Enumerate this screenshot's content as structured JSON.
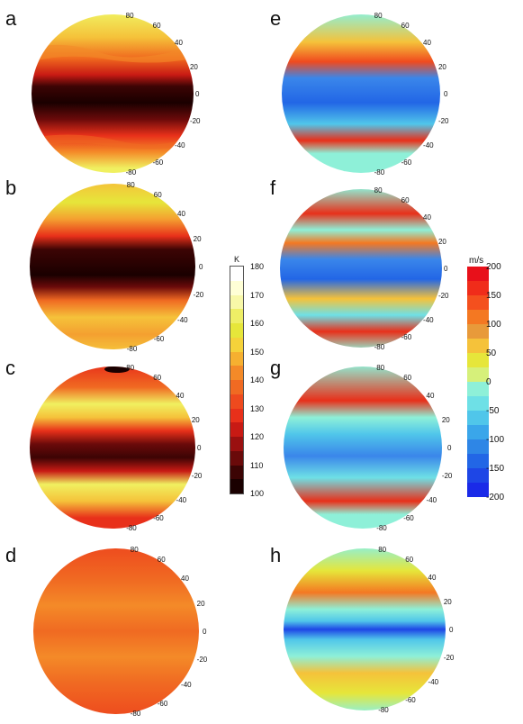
{
  "panels": [
    {
      "letter": "a",
      "lat_labels": [
        "80",
        "60",
        "40",
        "20",
        "0",
        "-20",
        "-40",
        "-60",
        "-80"
      ]
    },
    {
      "letter": "b",
      "lat_labels": [
        "80",
        "60",
        "40",
        "20",
        "0",
        "-20",
        "-40",
        "-60",
        "-80"
      ]
    },
    {
      "letter": "c",
      "lat_labels": [
        "80",
        "60",
        "40",
        "20",
        "0",
        "-20",
        "-40",
        "-60",
        "-80"
      ]
    },
    {
      "letter": "d",
      "lat_labels": [
        "80",
        "60",
        "40",
        "20",
        "0",
        "-20",
        "-40",
        "-60",
        "-80"
      ]
    },
    {
      "letter": "e",
      "lat_labels": [
        "80",
        "60",
        "40",
        "20",
        "0",
        "-20",
        "-40",
        "-60",
        "-80"
      ]
    },
    {
      "letter": "f",
      "lat_labels": [
        "80",
        "60",
        "40",
        "20",
        "0",
        "-20",
        "-40",
        "-60",
        "-80"
      ]
    },
    {
      "letter": "g",
      "lat_labels": [
        "80",
        "60",
        "40",
        "20",
        "0",
        "-20",
        "-40",
        "-60",
        "-80"
      ]
    },
    {
      "letter": "h",
      "lat_labels": [
        "80",
        "60",
        "40",
        "20",
        "0",
        "-20",
        "-40",
        "-60",
        "-80"
      ]
    }
  ],
  "temp_colorbar": {
    "unit": "K",
    "ticks": [
      "180",
      "170",
      "160",
      "150",
      "140",
      "130",
      "120",
      "110",
      "100"
    ],
    "colors": [
      "#ffffff",
      "#ffffd6",
      "#f8f8a8",
      "#eeee66",
      "#e6e63a",
      "#f5d23a",
      "#f6b030",
      "#f48a28",
      "#f06a22",
      "#ee4a1e",
      "#e8301a",
      "#c81a14",
      "#9a1010",
      "#6a0a0a",
      "#3c0404",
      "#1a0000"
    ]
  },
  "wind_colorbar": {
    "unit": "m/s",
    "ticks": [
      "200",
      "150",
      "100",
      "50",
      "0",
      "-50",
      "-100",
      "-150",
      "-200"
    ],
    "colors": [
      "#e8101a",
      "#f02c1a",
      "#f4501e",
      "#f47822",
      "#e89a3a",
      "#f5c23a",
      "#e6e63a",
      "#d6f07a",
      "#8ef0d8",
      "#6ee0e6",
      "#50c6ea",
      "#3aa6ea",
      "#2e86e6",
      "#2266e6",
      "#1e46e6",
      "#1a2ae8"
    ]
  }
}
